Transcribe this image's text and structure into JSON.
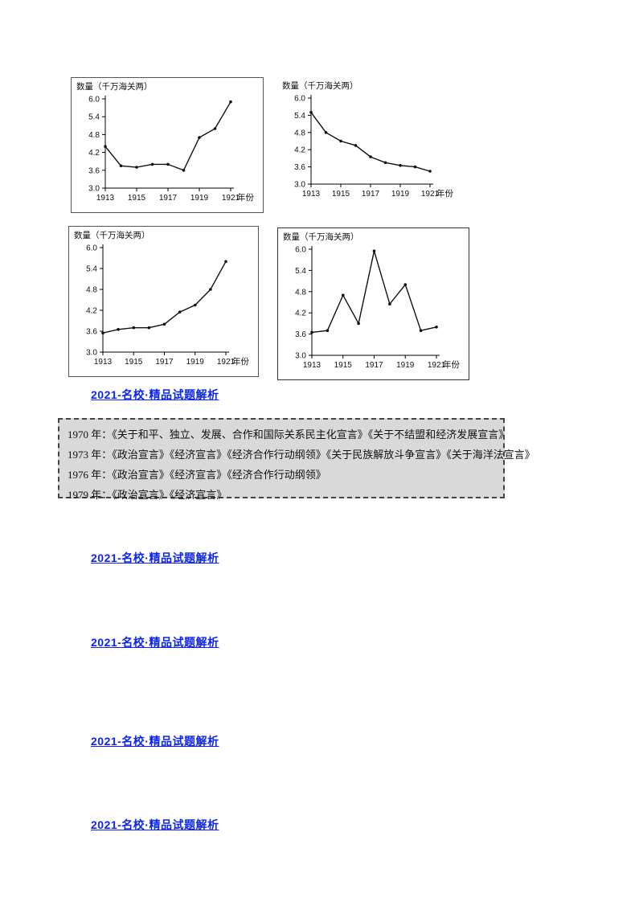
{
  "watermark": {
    "text": "2021-名校·精品试题解析"
  },
  "declarations_box": {
    "lines": [
      "1970 年：《关于和平、独立、发展、合作和国际关系民主化宣言》《关于不结盟和经济发展宣言》",
      "1973 年：《政治宣言》《经济宣言》《经济合作行动纲领》《关于民族解放斗争宣言》《关于海洋法宣言》",
      "1976 年：《政治宣言》《经济宣言》《经济合作行动纲领》",
      "1979 年：《政治宣言》《经济宣言》"
    ]
  },
  "chart_data": [
    {
      "type": "line",
      "title": "",
      "ylabel": "数量（千万海关两）",
      "xlabel": "年份",
      "x": [
        1913,
        1914,
        1915,
        1916,
        1917,
        1918,
        1919,
        1920,
        1921
      ],
      "values": [
        4.4,
        3.75,
        3.7,
        3.8,
        3.8,
        3.6,
        4.7,
        5.0,
        5.9
      ],
      "ylim": [
        3.0,
        6.0
      ],
      "yticks": [
        3.0,
        3.6,
        4.2,
        4.8,
        5.4,
        6.0
      ],
      "xticks": [
        1913,
        1915,
        1917,
        1919,
        1921
      ],
      "grid": false,
      "legend": "none"
    },
    {
      "type": "line",
      "title": "",
      "ylabel": "数量（千万海关两）",
      "xlabel": "年份",
      "x": [
        1913,
        1914,
        1915,
        1916,
        1917,
        1918,
        1919,
        1920,
        1921
      ],
      "values": [
        5.5,
        4.8,
        4.5,
        4.35,
        3.95,
        3.75,
        3.65,
        3.6,
        3.45
      ],
      "ylim": [
        3.0,
        6.0
      ],
      "yticks": [
        3.0,
        3.6,
        4.2,
        4.8,
        5.4,
        6.0
      ],
      "xticks": [
        1913,
        1915,
        1917,
        1919,
        1921
      ],
      "grid": false,
      "legend": "none"
    },
    {
      "type": "line",
      "title": "",
      "ylabel": "数量（千万海关两）",
      "xlabel": "年份",
      "x": [
        1913,
        1914,
        1915,
        1916,
        1917,
        1918,
        1919,
        1920,
        1921
      ],
      "values": [
        3.55,
        3.65,
        3.7,
        3.7,
        3.8,
        4.15,
        4.35,
        4.8,
        5.6
      ],
      "ylim": [
        3.0,
        6.0
      ],
      "yticks": [
        3.0,
        3.6,
        4.2,
        4.8,
        5.4,
        6.0
      ],
      "xticks": [
        1913,
        1915,
        1917,
        1919,
        1921
      ],
      "grid": false,
      "legend": "none"
    },
    {
      "type": "line",
      "title": "",
      "ylabel": "数量（千万海关两）",
      "xlabel": "年份",
      "x": [
        1913,
        1914,
        1915,
        1916,
        1917,
        1918,
        1919,
        1920,
        1921
      ],
      "values": [
        3.65,
        3.7,
        4.7,
        3.9,
        5.95,
        4.45,
        5.0,
        3.7,
        3.8
      ],
      "ylim": [
        3.0,
        6.0
      ],
      "yticks": [
        3.0,
        3.6,
        4.2,
        4.8,
        5.4,
        6.0
      ],
      "xticks": [
        1913,
        1915,
        1917,
        1919,
        1921
      ],
      "grid": false,
      "legend": "none"
    }
  ]
}
